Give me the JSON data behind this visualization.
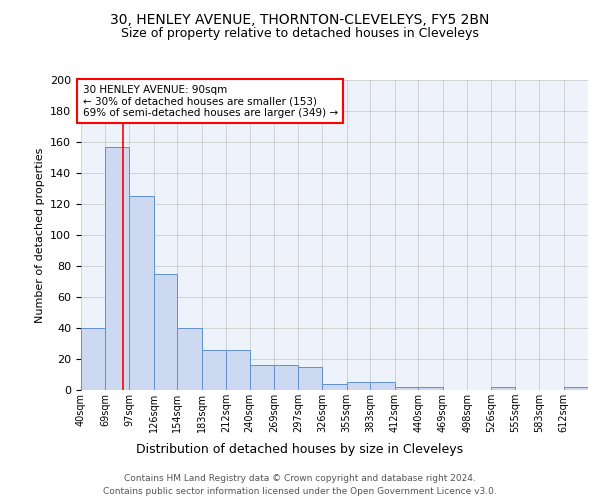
{
  "title1": "30, HENLEY AVENUE, THORNTON-CLEVELEYS, FY5 2BN",
  "title2": "Size of property relative to detached houses in Cleveleys",
  "xlabel": "Distribution of detached houses by size in Cleveleys",
  "ylabel": "Number of detached properties",
  "bins": [
    40,
    69,
    97,
    126,
    154,
    183,
    212,
    240,
    269,
    297,
    326,
    355,
    383,
    412,
    440,
    469,
    498,
    526,
    555,
    583,
    612
  ],
  "heights": [
    40,
    157,
    125,
    75,
    40,
    26,
    26,
    16,
    16,
    15,
    4,
    5,
    5,
    2,
    2,
    0,
    0,
    2,
    0,
    0,
    2
  ],
  "bar_color": "#ccd9f0",
  "bar_edge_color": "#6090d0",
  "red_line_x": 90,
  "annotation_line1": "30 HENLEY AVENUE: 90sqm",
  "annotation_line2": "← 30% of detached houses are smaller (153)",
  "annotation_line3": "69% of semi-detached houses are larger (349) →",
  "ylim": [
    0,
    200
  ],
  "yticks": [
    0,
    20,
    40,
    60,
    80,
    100,
    120,
    140,
    160,
    180,
    200
  ],
  "footer1": "Contains HM Land Registry data © Crown copyright and database right 2024.",
  "footer2": "Contains public sector information licensed under the Open Government Licence v3.0.",
  "background_color": "#eef2fb"
}
